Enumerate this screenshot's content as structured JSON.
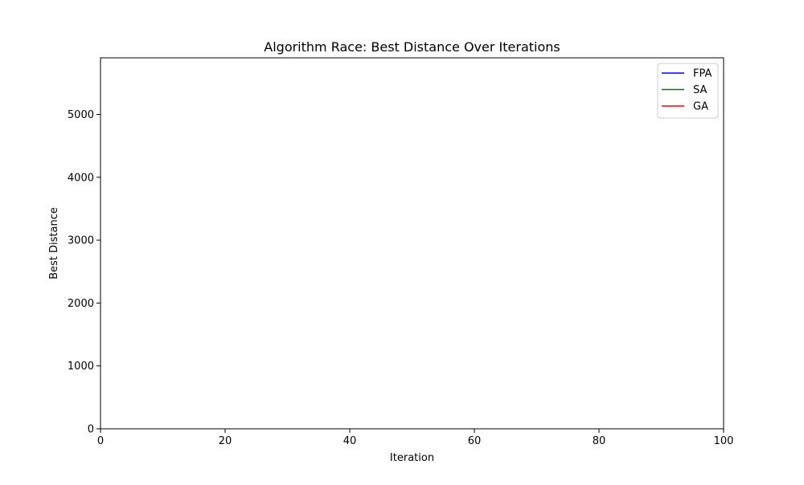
{
  "chart_data": {
    "type": "line",
    "title": "Algorithm Race: Best Distance Over Iterations",
    "xlabel": "Iteration",
    "ylabel": "Best Distance",
    "xlim": [
      0,
      100
    ],
    "ylim": [
      0,
      5900
    ],
    "xticks": [
      0,
      20,
      40,
      60,
      80,
      100
    ],
    "yticks": [
      0,
      1000,
      2000,
      3000,
      4000,
      5000
    ],
    "grid": false,
    "legend_position": "top-right",
    "series": [
      {
        "name": "FPA",
        "color": "#0000ff",
        "x": [],
        "y": []
      },
      {
        "name": "SA",
        "color": "#008000",
        "x": [],
        "y": []
      },
      {
        "name": "GA",
        "color": "#ff0000",
        "x": [],
        "y": []
      }
    ]
  }
}
